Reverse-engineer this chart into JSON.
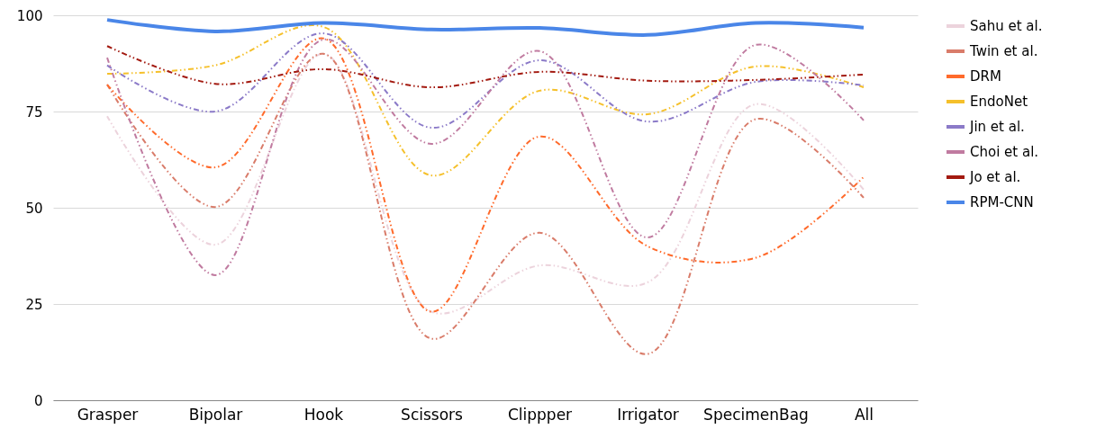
{
  "chart_data": {
    "type": "line",
    "categories": [
      "Grasper",
      "Bipolar",
      "Hook",
      "Scissors",
      "Clippper",
      "Irrigator",
      "SpecimenBag",
      "All"
    ],
    "ylim": [
      0,
      100
    ],
    "yticks": [
      0,
      25,
      50,
      75,
      100
    ],
    "grid": "y",
    "legend": "right",
    "series": [
      {
        "name": "Sahu et al.",
        "color": "#ecd3dc",
        "line_style": "dashed",
        "values": [
          73.8,
          40.4,
          90,
          23,
          35,
          30.6,
          76.9,
          54.7
        ]
      },
      {
        "name": "Twin et al.",
        "color": "#d97c6a",
        "line_style": "dashed",
        "values": [
          82,
          50.2,
          90,
          16,
          43.5,
          12,
          73,
          52.6
        ]
      },
      {
        "name": "DRM",
        "color": "#ff6a2b",
        "line_style": "dashed",
        "values": [
          82,
          60.5,
          94,
          23,
          68.5,
          40,
          37,
          58
        ]
      },
      {
        "name": "EndoNet",
        "color": "#f5c02b",
        "line_style": "dashed",
        "values": [
          84.8,
          87,
          97,
          58.4,
          80.4,
          74.3,
          86.7,
          81.3
        ]
      },
      {
        "name": "Jin et al.",
        "color": "#8b7ac8",
        "line_style": "dashed",
        "values": [
          87,
          75,
          95.3,
          70.8,
          88.3,
          72.4,
          82.7,
          81.8
        ]
      },
      {
        "name": "Choi et al.",
        "color": "#c07ba0",
        "line_style": "dashed",
        "values": [
          89,
          32.5,
          93.7,
          66.6,
          90.7,
          42.3,
          92.3,
          72.7
        ]
      },
      {
        "name": "Jo et al.",
        "color": "#a31a10",
        "line_style": "dashed",
        "values": [
          92,
          82.2,
          86,
          81.3,
          85.3,
          83,
          83.2,
          84.6
        ]
      },
      {
        "name": "RPM-CNN",
        "color": "#4a86e8",
        "line_style": "solid",
        "values": [
          98.8,
          95.8,
          98,
          96.3,
          96.7,
          94.9,
          98,
          96.8
        ]
      }
    ]
  }
}
